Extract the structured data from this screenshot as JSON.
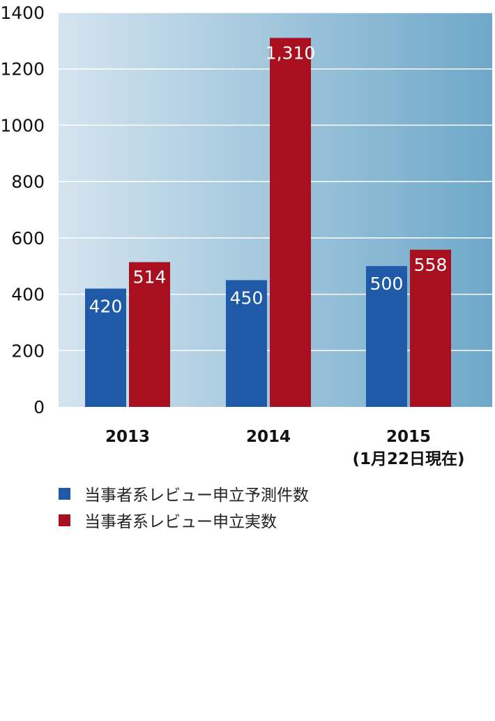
{
  "chart_data": {
    "type": "bar",
    "categories": [
      [
        "2013"
      ],
      [
        "2014"
      ],
      [
        "2015",
        "(1月22日現在)"
      ]
    ],
    "series": [
      {
        "name": "当事者系レビュー申立予測件数",
        "values": [
          420,
          450,
          500
        ],
        "labels": [
          "420",
          "450",
          "500"
        ]
      },
      {
        "name": "当事者系レビュー申立実数",
        "values": [
          514,
          1310,
          558
        ],
        "labels": [
          "514",
          "1,310",
          "558"
        ]
      }
    ],
    "y_ticks": [
      "0",
      "200",
      "400",
      "600",
      "800",
      "1000",
      "1200",
      "1400"
    ],
    "ylim": [
      0,
      1400
    ],
    "grid": true,
    "legend_placement": "bottom-left",
    "colors": {
      "predicted": "#1e5aa8",
      "actual": "#a81020",
      "bg_left": "#d4e4ef",
      "bg_right": "#6ea8c9"
    }
  }
}
